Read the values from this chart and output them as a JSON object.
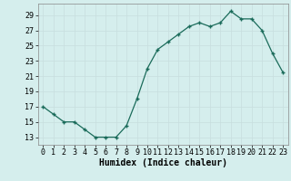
{
  "x": [
    0,
    1,
    2,
    3,
    4,
    5,
    6,
    7,
    8,
    9,
    10,
    11,
    12,
    13,
    14,
    15,
    16,
    17,
    18,
    19,
    20,
    21,
    22,
    23
  ],
  "y": [
    17,
    16,
    15,
    15,
    14,
    13,
    13,
    13,
    14.5,
    18,
    22,
    24.5,
    25.5,
    26.5,
    27.5,
    28,
    27.5,
    28,
    29.5,
    28.5,
    28.5,
    27,
    24,
    21.5
  ],
  "xlabel": "Humidex (Indice chaleur)",
  "xlim": [
    -0.5,
    23.5
  ],
  "ylim": [
    12,
    30.5
  ],
  "yticks": [
    13,
    15,
    17,
    19,
    21,
    23,
    25,
    27,
    29
  ],
  "xtick_labels": [
    "0",
    "1",
    "2",
    "3",
    "4",
    "5",
    "6",
    "7",
    "8",
    "9",
    "10",
    "11",
    "12",
    "13",
    "14",
    "15",
    "16",
    "17",
    "18",
    "19",
    "20",
    "21",
    "22",
    "23"
  ],
  "bg_color": "#d5eeed",
  "grid_major_color": "#c8dede",
  "grid_minor_color": "#daeaea",
  "line_color": "#1a6b5a",
  "marker_color": "#1a6b5a",
  "label_fontsize": 7,
  "tick_fontsize": 6
}
